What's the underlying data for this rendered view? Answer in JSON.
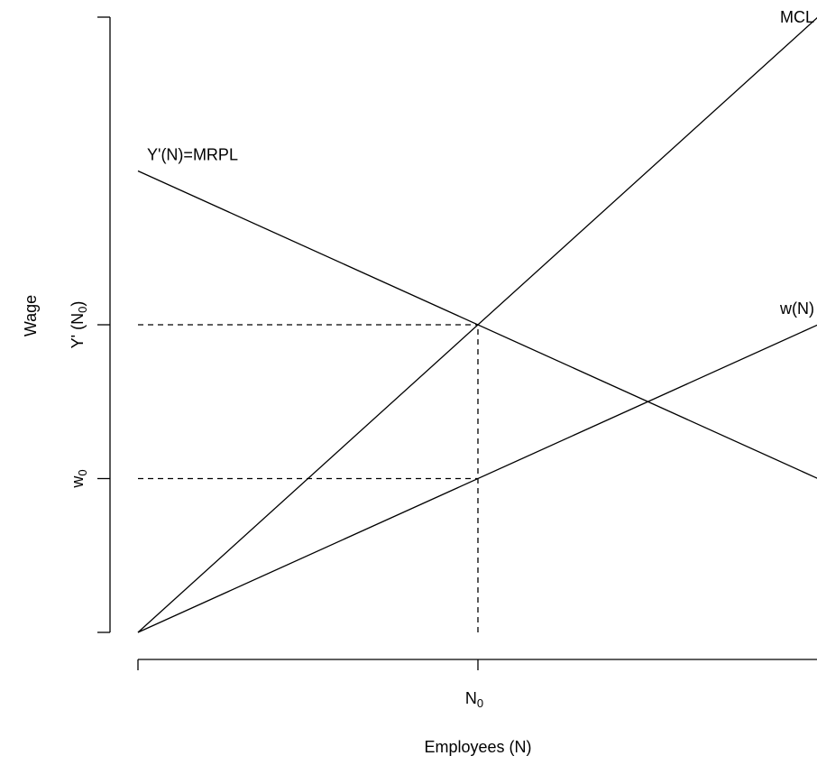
{
  "chart_data": {
    "type": "line",
    "xlabel": "Employees (N)",
    "ylabel": "Wage",
    "x_ticks": [
      {
        "value": 0,
        "label": ""
      },
      {
        "value": 1,
        "label": "N",
        "sub": "0"
      },
      {
        "value": 2,
        "label": ""
      }
    ],
    "y_ticks": [
      {
        "value": 0,
        "label": ""
      },
      {
        "value": 1,
        "label": "w",
        "sub": "0"
      },
      {
        "value": 2,
        "label": "Y' (N",
        "sub": "0",
        "suffix": ")"
      },
      {
        "value": 4,
        "label": ""
      }
    ],
    "xlim": [
      0,
      2
    ],
    "ylim": [
      0,
      4
    ],
    "series": [
      {
        "name": "Y'(N)=MRPL",
        "x": [
          0,
          2
        ],
        "y": [
          3,
          1
        ]
      },
      {
        "name": "MCL",
        "x": [
          0,
          2
        ],
        "y": [
          0,
          4
        ]
      },
      {
        "name": "w(N)",
        "x": [
          0,
          2
        ],
        "y": [
          0,
          2
        ]
      }
    ],
    "reference_lines": [
      {
        "x": [
          0,
          1
        ],
        "y": [
          2,
          2
        ]
      },
      {
        "x": [
          0,
          1
        ],
        "y": [
          1,
          1
        ]
      },
      {
        "x": [
          1,
          1
        ],
        "y": [
          0,
          2
        ]
      }
    ],
    "grid": false,
    "legend": "none"
  }
}
